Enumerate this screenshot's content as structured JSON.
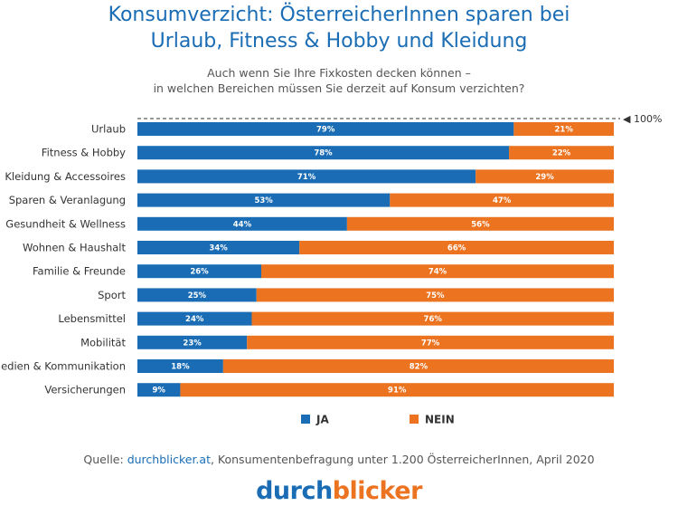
{
  "chart_data": {
    "type": "bar",
    "orientation": "horizontal",
    "stacked": true,
    "title_line1": "Konsumverzicht: ÖsterreicherInnen sparen bei",
    "title_line2": "Urlaub, Fitness & Hobby und Kleidung",
    "subtitle_line1": "Auch wenn Sie Ihre Fixkosten decken können –",
    "subtitle_line2": "in welchen Bereichen müssen Sie derzeit auf Konsum verzichten?",
    "reference_label": "◀ 100%",
    "categories": [
      "Urlaub",
      "Fitness & Hobby",
      "Kleidung & Accessoires",
      "Sparen & Veranlagung",
      "Gesundheit & Wellness",
      "Wohnen & Haushalt",
      "Familie & Freunde",
      "Sport",
      "Lebensmittel",
      "Mobilität",
      "Medien & Kommunikation",
      "Versicherungen"
    ],
    "series": [
      {
        "name": "JA",
        "color": "#1a6db5",
        "values": [
          79,
          78,
          71,
          53,
          44,
          34,
          26,
          25,
          24,
          23,
          18,
          9
        ]
      },
      {
        "name": "NEIN",
        "color": "#ec7320",
        "values": [
          21,
          22,
          29,
          47,
          56,
          66,
          74,
          75,
          76,
          77,
          82,
          91
        ]
      }
    ],
    "xlim": [
      0,
      100
    ],
    "value_suffix": "%",
    "legend_position": "bottom",
    "grid": false
  },
  "footer": {
    "source_prefix": "Quelle: ",
    "source_link": "durchblicker.at",
    "source_suffix": ", Konsumentenbefragung unter 1.200 ÖsterreicherInnen, April 2020"
  },
  "logo": {
    "part1": "durch",
    "part2": "blicker"
  }
}
